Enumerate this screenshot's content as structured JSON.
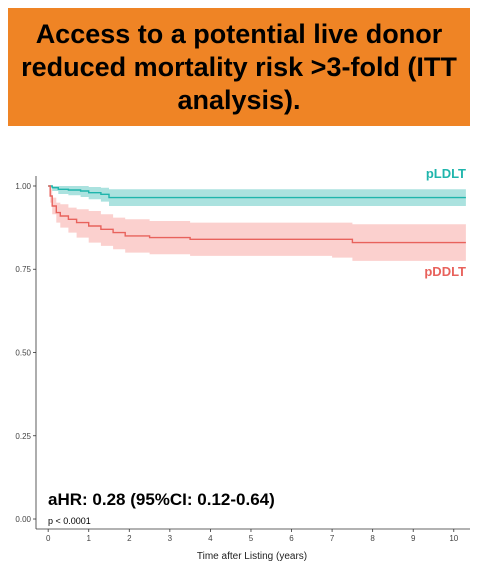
{
  "banner": {
    "title": "Access to a potential live donor reduced mortality risk >3-fold (ITT analysis).",
    "background": "#ef8425"
  },
  "chart_data": {
    "type": "line",
    "subtype": "kaplan-meier",
    "title": "",
    "xlabel": "Time after Listing (years)",
    "ylabel": "",
    "xlim": [
      -0.3,
      10.4
    ],
    "ylim": [
      -0.03,
      1.03
    ],
    "x_ticks": [
      0,
      1,
      2,
      3,
      4,
      5,
      6,
      7,
      8,
      9,
      10
    ],
    "y_ticks": [
      0.0,
      0.25,
      0.5,
      0.75,
      1.0
    ],
    "y_tick_labels": [
      "0.00",
      "0.25",
      "0.50",
      "0.75",
      "1.00"
    ],
    "grid": false,
    "legend": "inline labels at right",
    "series": [
      {
        "name": "pLDLT",
        "color": "#1fb5ac",
        "band_color": "#8fd8d4",
        "x": [
          0,
          0.1,
          0.25,
          0.5,
          0.8,
          1.0,
          1.3,
          1.5,
          1.8,
          2.5,
          5,
          7,
          9,
          10.3
        ],
        "y": [
          1.0,
          0.995,
          0.99,
          0.988,
          0.985,
          0.98,
          0.975,
          0.965,
          0.965,
          0.965,
          0.965,
          0.965,
          0.965,
          0.965
        ],
        "lower": [
          1.0,
          0.985,
          0.976,
          0.972,
          0.967,
          0.96,
          0.953,
          0.94,
          0.94,
          0.94,
          0.94,
          0.94,
          0.94,
          0.94
        ],
        "upper": [
          1.0,
          1.0,
          1.0,
          1.0,
          1.0,
          0.997,
          0.995,
          0.99,
          0.99,
          0.99,
          0.99,
          0.99,
          0.99,
          0.99
        ]
      },
      {
        "name": "pDDLT",
        "color": "#e8625c",
        "band_color": "#f9c0bd",
        "x": [
          0,
          0.05,
          0.1,
          0.2,
          0.3,
          0.5,
          0.7,
          1.0,
          1.3,
          1.6,
          1.9,
          2.2,
          2.5,
          3.0,
          3.5,
          4.0,
          4.5,
          5.0,
          5.5,
          6.0,
          6.5,
          7.0,
          7.5,
          8.0,
          9.0,
          10.3
        ],
        "y": [
          1.0,
          0.97,
          0.94,
          0.92,
          0.91,
          0.9,
          0.89,
          0.88,
          0.87,
          0.86,
          0.85,
          0.85,
          0.845,
          0.845,
          0.84,
          0.84,
          0.84,
          0.84,
          0.84,
          0.84,
          0.84,
          0.84,
          0.83,
          0.83,
          0.83,
          0.83
        ],
        "lower": [
          1.0,
          0.95,
          0.915,
          0.89,
          0.875,
          0.86,
          0.845,
          0.83,
          0.82,
          0.81,
          0.8,
          0.8,
          0.795,
          0.795,
          0.79,
          0.79,
          0.79,
          0.79,
          0.79,
          0.79,
          0.79,
          0.785,
          0.775,
          0.775,
          0.775,
          0.775
        ],
        "upper": [
          1.0,
          0.99,
          0.965,
          0.95,
          0.945,
          0.935,
          0.93,
          0.925,
          0.915,
          0.905,
          0.9,
          0.9,
          0.895,
          0.895,
          0.89,
          0.89,
          0.89,
          0.89,
          0.89,
          0.89,
          0.89,
          0.89,
          0.885,
          0.885,
          0.885,
          0.885
        ]
      }
    ],
    "annotations": {
      "hazard_ratio": "aHR: 0.28 (95%CI: 0.12-0.64)",
      "p_value": "p < 0.0001"
    }
  }
}
